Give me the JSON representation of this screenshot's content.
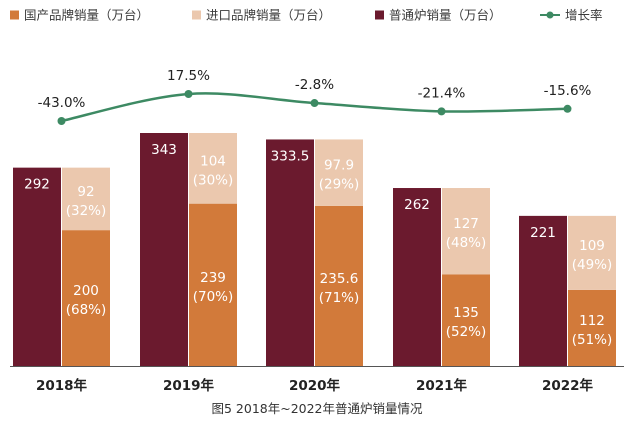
{
  "chart_data": {
    "type": "bar",
    "title": "",
    "caption": "图5 2018年~2022年普通炉销量情况",
    "categories": [
      "2018年",
      "2019年",
      "2020年",
      "2021年",
      "2022年"
    ],
    "series": [
      {
        "name": "普通炉销量（万台）",
        "values": [
          292,
          343,
          333.5,
          262,
          221
        ],
        "labels": [
          "292",
          "343",
          "333.5",
          "262",
          "221"
        ],
        "color": "#6b1a2e"
      },
      {
        "name": "国产品牌销量（万台）",
        "values": [
          200,
          239,
          235.6,
          135,
          112
        ],
        "labels": [
          "200",
          "239",
          "235.6",
          "135",
          "112"
        ],
        "share_labels": [
          "(68%)",
          "(70%)",
          "(71%)",
          "(52%)",
          "(51%)"
        ],
        "color": "#d27a3a",
        "stack": "brand"
      },
      {
        "name": "进口品牌销量（万台）",
        "values": [
          92,
          104,
          97.9,
          127,
          109
        ],
        "labels": [
          "92",
          "104",
          "97.9",
          "127",
          "109"
        ],
        "share_labels": [
          "(32%)",
          "(30%)",
          "(29%)",
          "(48%)",
          "(49%)"
        ],
        "color": "#ebc8ae",
        "stack": "brand"
      },
      {
        "name": "增长率",
        "type": "line",
        "values": [
          -43.0,
          17.5,
          -2.8,
          -21.4,
          -15.6
        ],
        "labels": [
          "-43.0%",
          "17.5%",
          "-2.8%",
          "-21.4%",
          "-15.6%"
        ],
        "color": "#3d8a63"
      }
    ],
    "legend_order": [
      "国产品牌销量（万台）",
      "进口品牌销量（万台）",
      "普通炉销量（万台）",
      "增长率"
    ],
    "legend_position": "top",
    "ylim": [
      0,
      343
    ],
    "grid": false
  }
}
